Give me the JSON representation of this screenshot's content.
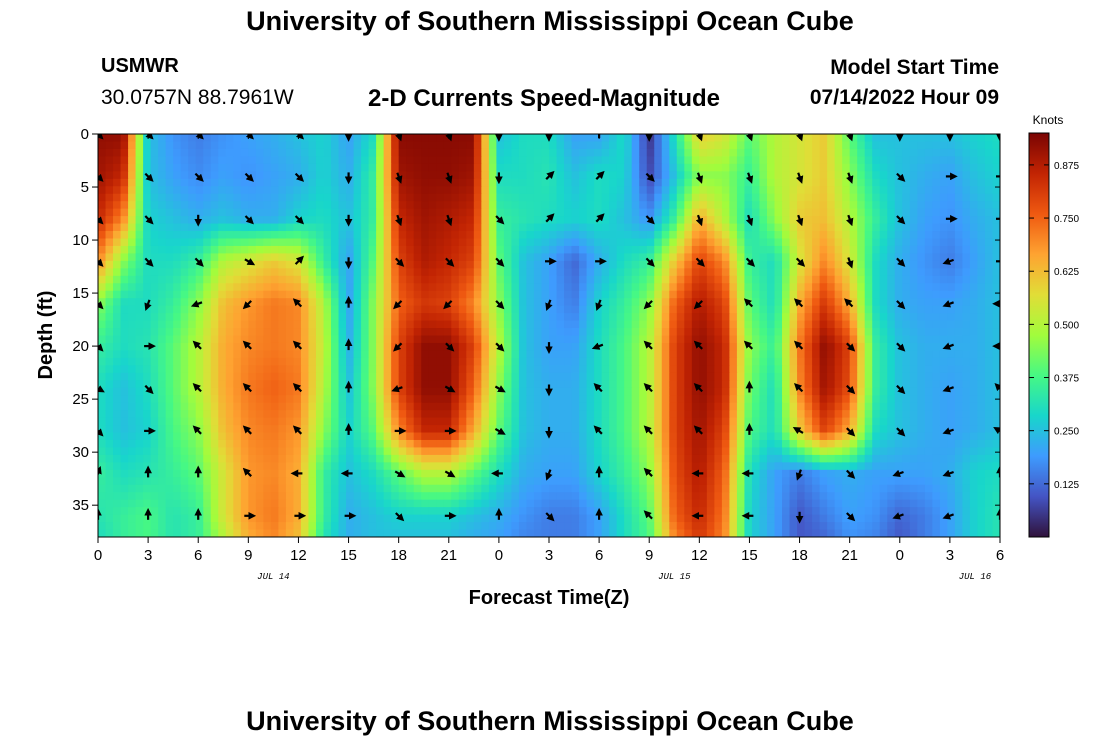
{
  "header": {
    "title": "University of Southern Mississippi Ocean Cube",
    "station_name": "USMWR",
    "station_coords": "30.0757N  88.7961W",
    "subtitle": "2-D Currents Speed-Magnitude",
    "model_start_label": "Model Start Time",
    "model_start_value": "07/14/2022 Hour 09"
  },
  "footer": {
    "title": "University of Southern Mississippi Ocean Cube"
  },
  "chart_data": {
    "type": "heatmap",
    "title": "2-D Currents Speed-Magnitude",
    "xlabel": "Forecast Time(Z)",
    "ylabel": "Depth (ft)",
    "x_tick_labels": [
      "0",
      "3",
      "6",
      "9",
      "12",
      "15",
      "18",
      "21",
      "0",
      "3",
      "6",
      "9",
      "12",
      "15",
      "18",
      "21",
      "0",
      "3",
      "6"
    ],
    "x_hours_from_start": [
      0,
      3,
      6,
      9,
      12,
      15,
      18,
      21,
      24,
      27,
      30,
      33,
      36,
      39,
      42,
      45,
      48,
      51,
      54
    ],
    "date_labels": [
      {
        "text": "JUL 14",
        "at_hour": 10.5
      },
      {
        "text": "JUL 15",
        "at_hour": 34.5
      },
      {
        "text": "JUL 16",
        "at_hour": 52.5
      }
    ],
    "ylim": [
      0,
      38
    ],
    "y_ticks": [
      0,
      5,
      10,
      15,
      20,
      25,
      30,
      35
    ],
    "colorbar": {
      "unit": "Knots",
      "range": [
        0,
        0.95
      ],
      "ticks": [
        "0.125",
        "0.250",
        "0.375",
        "0.500",
        "0.625",
        "0.750",
        "0.875"
      ],
      "tick_values": [
        0.125,
        0.25,
        0.375,
        0.5,
        0.625,
        0.75,
        0.875
      ],
      "colormap": [
        "#30123b",
        "#4454c4",
        "#3e9bfe",
        "#18d6cb",
        "#46f884",
        "#a2fc3c",
        "#e1dd37",
        "#fea331",
        "#ef5911",
        "#c22403",
        "#7a0403"
      ]
    },
    "grid_depths_ft": [
      0,
      4,
      8,
      12,
      16,
      20,
      24,
      28,
      32,
      36,
      38
    ],
    "grid_hours": [
      0,
      1.5,
      3,
      4.5,
      6,
      7.5,
      9,
      10.5,
      12,
      13.5,
      15,
      16.5,
      18,
      19.5,
      21,
      22.5,
      24,
      25.5,
      27,
      28.5,
      30,
      31.5,
      33,
      34.5,
      36,
      37.5,
      39,
      40.5,
      42,
      43.5,
      45,
      46.5,
      48,
      49.5,
      51,
      52.5,
      54
    ],
    "speed_knots": [
      [
        0.92,
        0.92,
        0.25,
        0.18,
        0.15,
        0.18,
        0.2,
        0.22,
        0.25,
        0.28,
        0.2,
        0.3,
        0.93,
        0.93,
        0.93,
        0.93,
        0.25,
        0.3,
        0.3,
        0.2,
        0.2,
        0.3,
        0.05,
        0.3,
        0.6,
        0.55,
        0.4,
        0.5,
        0.55,
        0.6,
        0.4,
        0.25,
        0.25,
        0.25,
        0.25,
        0.28,
        0.3
      ],
      [
        0.9,
        0.85,
        0.25,
        0.2,
        0.17,
        0.2,
        0.18,
        0.2,
        0.22,
        0.28,
        0.22,
        0.35,
        0.9,
        0.92,
        0.92,
        0.9,
        0.3,
        0.3,
        0.32,
        0.25,
        0.3,
        0.28,
        0.08,
        0.25,
        0.45,
        0.45,
        0.35,
        0.5,
        0.55,
        0.6,
        0.45,
        0.3,
        0.25,
        0.22,
        0.2,
        0.25,
        0.28
      ],
      [
        0.85,
        0.7,
        0.28,
        0.25,
        0.22,
        0.25,
        0.22,
        0.22,
        0.28,
        0.3,
        0.25,
        0.35,
        0.85,
        0.9,
        0.88,
        0.85,
        0.35,
        0.32,
        0.3,
        0.28,
        0.3,
        0.25,
        0.18,
        0.35,
        0.65,
        0.5,
        0.3,
        0.45,
        0.6,
        0.62,
        0.5,
        0.35,
        0.25,
        0.2,
        0.18,
        0.22,
        0.25
      ],
      [
        0.7,
        0.45,
        0.3,
        0.3,
        0.35,
        0.5,
        0.55,
        0.6,
        0.55,
        0.35,
        0.2,
        0.4,
        0.8,
        0.88,
        0.85,
        0.8,
        0.4,
        0.25,
        0.2,
        0.12,
        0.22,
        0.3,
        0.35,
        0.6,
        0.8,
        0.7,
        0.35,
        0.3,
        0.55,
        0.7,
        0.55,
        0.3,
        0.22,
        0.18,
        0.15,
        0.2,
        0.25
      ],
      [
        0.45,
        0.3,
        0.3,
        0.35,
        0.45,
        0.62,
        0.68,
        0.72,
        0.7,
        0.5,
        0.2,
        0.45,
        0.75,
        0.82,
        0.8,
        0.7,
        0.45,
        0.25,
        0.2,
        0.15,
        0.28,
        0.35,
        0.45,
        0.75,
        0.88,
        0.8,
        0.4,
        0.3,
        0.65,
        0.82,
        0.65,
        0.3,
        0.22,
        0.2,
        0.2,
        0.22,
        0.25
      ],
      [
        0.35,
        0.3,
        0.32,
        0.4,
        0.5,
        0.65,
        0.7,
        0.72,
        0.7,
        0.52,
        0.22,
        0.45,
        0.8,
        0.92,
        0.92,
        0.8,
        0.5,
        0.25,
        0.2,
        0.2,
        0.3,
        0.38,
        0.5,
        0.8,
        0.92,
        0.85,
        0.45,
        0.35,
        0.72,
        0.92,
        0.8,
        0.35,
        0.25,
        0.22,
        0.22,
        0.22,
        0.25
      ],
      [
        0.3,
        0.25,
        0.3,
        0.4,
        0.5,
        0.65,
        0.72,
        0.75,
        0.72,
        0.5,
        0.25,
        0.45,
        0.8,
        0.92,
        0.92,
        0.75,
        0.45,
        0.25,
        0.22,
        0.22,
        0.3,
        0.38,
        0.5,
        0.8,
        0.92,
        0.85,
        0.42,
        0.3,
        0.7,
        0.9,
        0.78,
        0.35,
        0.25,
        0.22,
        0.2,
        0.22,
        0.25
      ],
      [
        0.3,
        0.25,
        0.28,
        0.38,
        0.45,
        0.62,
        0.7,
        0.72,
        0.68,
        0.45,
        0.28,
        0.4,
        0.7,
        0.85,
        0.85,
        0.65,
        0.4,
        0.25,
        0.22,
        0.22,
        0.3,
        0.38,
        0.5,
        0.8,
        0.9,
        0.8,
        0.38,
        0.3,
        0.6,
        0.8,
        0.65,
        0.3,
        0.25,
        0.22,
        0.2,
        0.22,
        0.25
      ],
      [
        0.35,
        0.3,
        0.32,
        0.35,
        0.4,
        0.55,
        0.68,
        0.7,
        0.65,
        0.35,
        0.25,
        0.3,
        0.4,
        0.5,
        0.5,
        0.4,
        0.3,
        0.22,
        0.2,
        0.2,
        0.28,
        0.35,
        0.45,
        0.78,
        0.88,
        0.75,
        0.3,
        0.2,
        0.15,
        0.2,
        0.22,
        0.2,
        0.2,
        0.2,
        0.22,
        0.28,
        0.3
      ],
      [
        0.32,
        0.35,
        0.38,
        0.32,
        0.35,
        0.55,
        0.68,
        0.72,
        0.65,
        0.35,
        0.22,
        0.25,
        0.28,
        0.28,
        0.28,
        0.25,
        0.22,
        0.18,
        0.15,
        0.15,
        0.2,
        0.3,
        0.4,
        0.75,
        0.85,
        0.72,
        0.28,
        0.2,
        0.1,
        0.15,
        0.2,
        0.18,
        0.12,
        0.15,
        0.2,
        0.28,
        0.32
      ],
      [
        0.3,
        0.35,
        0.38,
        0.32,
        0.35,
        0.5,
        0.65,
        0.7,
        0.62,
        0.32,
        0.22,
        0.25,
        0.25,
        0.25,
        0.25,
        0.22,
        0.2,
        0.16,
        0.15,
        0.15,
        0.2,
        0.3,
        0.38,
        0.7,
        0.82,
        0.7,
        0.28,
        0.2,
        0.1,
        0.12,
        0.18,
        0.16,
        0.1,
        0.15,
        0.2,
        0.28,
        0.32
      ]
    ],
    "vectors": {
      "hours": [
        0,
        3,
        6,
        9,
        12,
        15,
        18,
        21,
        24,
        27,
        30,
        33,
        36,
        39,
        42,
        45,
        48,
        51,
        54
      ],
      "depths_ft": [
        0,
        4,
        8,
        12,
        16,
        20,
        24,
        28,
        32,
        36
      ],
      "direction_deg_from_north": [
        [
          135,
          135,
          135,
          135,
          135,
          180,
          160,
          160,
          180,
          180,
          0,
          180,
          160,
          160,
          160,
          160,
          180,
          180,
          180
        ],
        [
          135,
          135,
          135,
          135,
          135,
          180,
          160,
          160,
          180,
          45,
          45,
          135,
          160,
          160,
          160,
          160,
          135,
          90,
          90
        ],
        [
          135,
          135,
          180,
          135,
          135,
          180,
          160,
          160,
          135,
          45,
          45,
          135,
          160,
          160,
          160,
          160,
          135,
          90,
          90
        ],
        [
          135,
          135,
          135,
          120,
          45,
          180,
          135,
          135,
          135,
          90,
          90,
          135,
          135,
          135,
          135,
          160,
          135,
          250,
          90
        ],
        [
          135,
          200,
          250,
          225,
          315,
          0,
          225,
          225,
          135,
          200,
          200,
          225,
          225,
          315,
          315,
          315,
          135,
          250,
          270
        ],
        [
          135,
          90,
          315,
          315,
          315,
          0,
          225,
          135,
          135,
          180,
          250,
          315,
          315,
          315,
          315,
          135,
          135,
          250,
          270
        ],
        [
          120,
          135,
          315,
          315,
          315,
          0,
          250,
          120,
          120,
          180,
          315,
          315,
          315,
          0,
          315,
          135,
          135,
          250,
          315
        ],
        [
          135,
          90,
          315,
          315,
          315,
          0,
          90,
          90,
          120,
          180,
          315,
          315,
          315,
          0,
          300,
          135,
          135,
          250,
          300
        ],
        [
          20,
          0,
          0,
          315,
          270,
          270,
          120,
          120,
          270,
          200,
          0,
          315,
          270,
          270,
          200,
          135,
          250,
          250,
          0
        ],
        [
          0,
          0,
          0,
          90,
          90,
          90,
          135,
          90,
          0,
          135,
          0,
          315,
          270,
          270,
          180,
          135,
          250,
          250,
          0
        ]
      ]
    }
  }
}
